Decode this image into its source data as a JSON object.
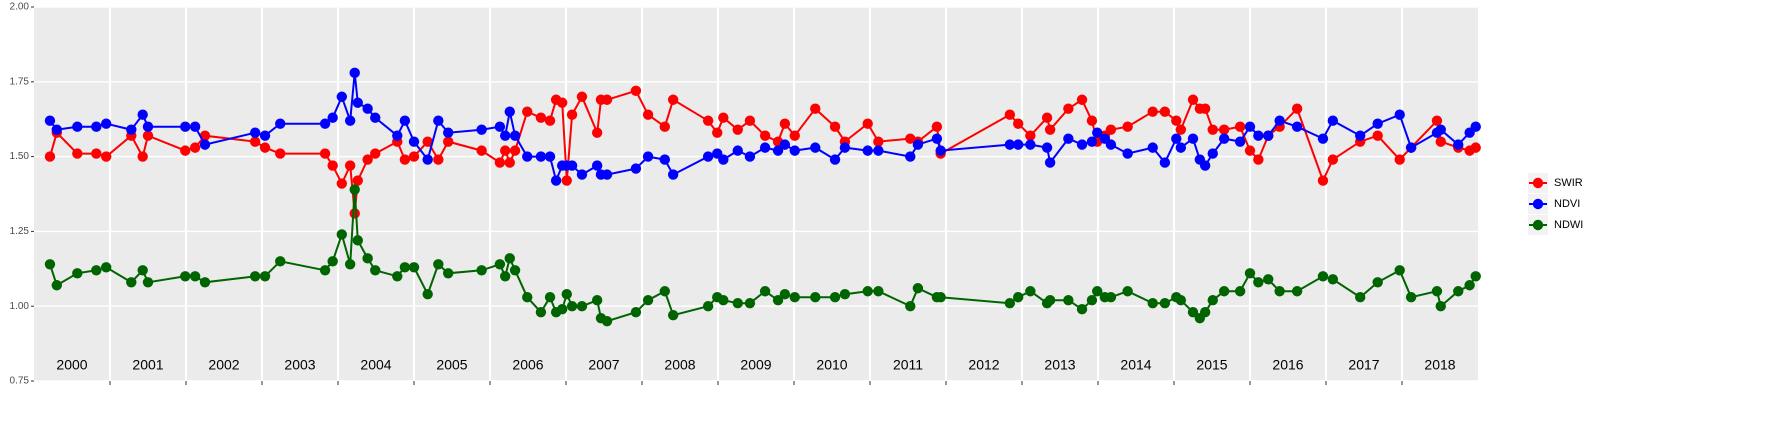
{
  "chart_data": {
    "type": "line",
    "x": [
      2000.21,
      2000.3,
      2000.57,
      2000.82,
      2000.95,
      2001.28,
      2001.43,
      2001.5,
      2001.99,
      2002.12,
      2002.25,
      2002.91,
      2003.04,
      2003.24,
      2003.83,
      2003.93,
      2004.05,
      2004.16,
      2004.22,
      2004.26,
      2004.39,
      2004.49,
      2004.78,
      2004.88,
      2005.0,
      2005.18,
      2005.32,
      2005.45,
      2005.89,
      2006.13,
      2006.2,
      2006.26,
      2006.33,
      2006.49,
      2006.67,
      2006.79,
      2006.87,
      2006.95,
      2007.01,
      2007.08,
      2007.21,
      2007.41,
      2007.46,
      2007.54,
      2007.92,
      2008.08,
      2008.3,
      2008.41,
      2008.87,
      2008.99,
      2009.07,
      2009.26,
      2009.42,
      2009.62,
      2009.79,
      2009.88,
      2010.01,
      2010.28,
      2010.54,
      2010.67,
      2010.97,
      2011.11,
      2011.53,
      2011.63,
      2011.88,
      2011.93,
      2012.84,
      2012.95,
      2013.11,
      2013.33,
      2013.37,
      2013.61,
      2013.79,
      2013.92,
      2013.99,
      2014.09,
      2014.17,
      2014.39,
      2014.72,
      2014.88,
      2015.03,
      2015.09,
      2015.25,
      2015.34,
      2015.41,
      2015.51,
      2015.66,
      2015.87,
      2016.0,
      2016.11,
      2016.24,
      2016.39,
      2016.62,
      2016.96,
      2017.09,
      2017.45,
      2017.68,
      2017.97,
      2018.12,
      2018.46,
      2018.51,
      2018.74,
      2018.89,
      2018.97
    ],
    "series": [
      {
        "name": "SWIR",
        "color": "#ff0000",
        "values": [
          1.5,
          1.58,
          1.51,
          1.51,
          1.5,
          1.57,
          1.5,
          1.57,
          1.52,
          1.53,
          1.57,
          1.55,
          1.53,
          1.51,
          1.51,
          1.47,
          1.41,
          1.47,
          1.31,
          1.42,
          1.49,
          1.51,
          1.55,
          1.49,
          1.5,
          1.55,
          1.49,
          1.55,
          1.52,
          1.48,
          1.52,
          1.48,
          1.52,
          1.65,
          1.63,
          1.62,
          1.69,
          1.68,
          1.42,
          1.64,
          1.7,
          1.58,
          1.69,
          1.69,
          1.72,
          1.64,
          1.6,
          1.69,
          1.62,
          1.58,
          1.63,
          1.59,
          1.62,
          1.57,
          1.55,
          1.61,
          1.57,
          1.66,
          1.6,
          1.55,
          1.61,
          1.55,
          1.56,
          1.55,
          1.6,
          1.51,
          1.64,
          1.61,
          1.57,
          1.63,
          1.59,
          1.66,
          1.69,
          1.62,
          1.55,
          1.57,
          1.59,
          1.6,
          1.65,
          1.65,
          1.62,
          1.59,
          1.69,
          1.66,
          1.66,
          1.59,
          1.59,
          1.6,
          1.52,
          1.49,
          1.57,
          1.6,
          1.66,
          1.42,
          1.49,
          1.55,
          1.57,
          1.49,
          1.53,
          1.62,
          1.55,
          1.53,
          1.52,
          1.53
        ]
      },
      {
        "name": "NDVI",
        "color": "#0000ff",
        "values": [
          1.62,
          1.59,
          1.6,
          1.6,
          1.61,
          1.59,
          1.64,
          1.6,
          1.6,
          1.6,
          1.54,
          1.58,
          1.57,
          1.61,
          1.61,
          1.63,
          1.7,
          1.62,
          1.78,
          1.68,
          1.66,
          1.63,
          1.57,
          1.62,
          1.55,
          1.49,
          1.62,
          1.58,
          1.59,
          1.6,
          1.57,
          1.65,
          1.57,
          1.5,
          1.5,
          1.5,
          1.42,
          1.47,
          1.47,
          1.47,
          1.44,
          1.47,
          1.44,
          1.44,
          1.46,
          1.5,
          1.49,
          1.44,
          1.5,
          1.51,
          1.49,
          1.52,
          1.5,
          1.53,
          1.52,
          1.54,
          1.52,
          1.53,
          1.49,
          1.53,
          1.52,
          1.52,
          1.5,
          1.54,
          1.56,
          1.52,
          1.54,
          1.54,
          1.54,
          1.53,
          1.48,
          1.56,
          1.54,
          1.55,
          1.58,
          1.56,
          1.54,
          1.51,
          1.53,
          1.48,
          1.56,
          1.53,
          1.56,
          1.49,
          1.47,
          1.51,
          1.56,
          1.55,
          1.6,
          1.57,
          1.57,
          1.62,
          1.6,
          1.56,
          1.62,
          1.57,
          1.61,
          1.64,
          1.53,
          1.58,
          1.59,
          1.54,
          1.58,
          1.6
        ]
      },
      {
        "name": "NDWI",
        "color": "#006400",
        "values": [
          1.14,
          1.07,
          1.11,
          1.12,
          1.13,
          1.08,
          1.12,
          1.08,
          1.1,
          1.1,
          1.08,
          1.1,
          1.1,
          1.15,
          1.12,
          1.15,
          1.24,
          1.14,
          1.39,
          1.22,
          1.16,
          1.12,
          1.1,
          1.13,
          1.13,
          1.04,
          1.14,
          1.11,
          1.12,
          1.14,
          1.1,
          1.16,
          1.12,
          1.03,
          0.98,
          1.03,
          0.98,
          0.99,
          1.04,
          1.0,
          1.0,
          1.02,
          0.96,
          0.95,
          0.98,
          1.02,
          1.05,
          0.97,
          1.0,
          1.03,
          1.02,
          1.01,
          1.01,
          1.05,
          1.02,
          1.04,
          1.03,
          1.03,
          1.03,
          1.04,
          1.05,
          1.05,
          1.0,
          1.06,
          1.03,
          1.03,
          1.01,
          1.03,
          1.05,
          1.01,
          1.02,
          1.02,
          0.99,
          1.02,
          1.05,
          1.03,
          1.03,
          1.05,
          1.01,
          1.01,
          1.03,
          1.02,
          0.98,
          0.96,
          0.98,
          1.02,
          1.05,
          1.05,
          1.11,
          1.08,
          1.09,
          1.05,
          1.05,
          1.1,
          1.09,
          1.03,
          1.08,
          1.12,
          1.03,
          1.05,
          1.0,
          1.05,
          1.07,
          1.1
        ]
      }
    ],
    "xlim": [
      2000,
      2019
    ],
    "xticks": [
      2001,
      2002,
      2003,
      2004,
      2005,
      2006,
      2007,
      2008,
      2009,
      2010,
      2011,
      2012,
      2013,
      2014,
      2015,
      2016,
      2017,
      2018
    ],
    "year_labels": [
      "2000",
      "2001",
      "2002",
      "2003",
      "2004",
      "2005",
      "2006",
      "2007",
      "2008",
      "2009",
      "2010",
      "2011",
      "2012",
      "2013",
      "2014",
      "2015",
      "2016",
      "2017",
      "2018"
    ],
    "ylim": [
      0.75,
      2.0
    ],
    "yticks": [
      0.75,
      {
        "value": 1,
        "label": "1.00"
      },
      1.25,
      {
        "value": 1.5,
        "label": "1.50"
      },
      1.75,
      {
        "value": 2,
        "label": "2.00"
      }
    ],
    "grid": true,
    "legend": "right"
  }
}
